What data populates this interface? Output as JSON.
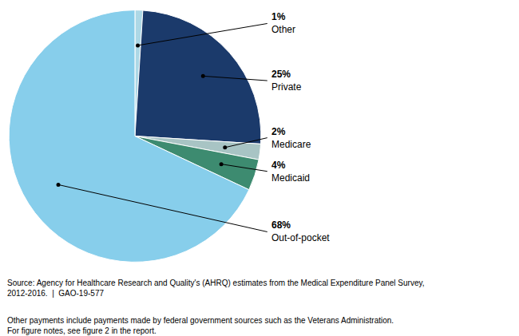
{
  "chart_data": {
    "type": "pie",
    "categories": [
      "Other",
      "Private",
      "Medicare",
      "Medicaid",
      "Out-of-pocket"
    ],
    "values": [
      1,
      25,
      2,
      4,
      68
    ],
    "value_labels": [
      "1%",
      "25%",
      "2%",
      "4%",
      "68%"
    ],
    "colors": [
      "#ADD8E6",
      "#1B3A6B",
      "#A8C4C4",
      "#3D8B70",
      "#87CEEB"
    ],
    "data_labels": true,
    "annotations": [
      "Source: Agency for Healthcare Research and Quality's (AHRQ) estimates from the Medical Expenditure Panel Survey,\n2012-2016.  |  GAO-19-577",
      "Other payments include payments made by federal government sources such as the Veterans Administration.\nFor figure notes, see figure 2 in the report."
    ]
  }
}
